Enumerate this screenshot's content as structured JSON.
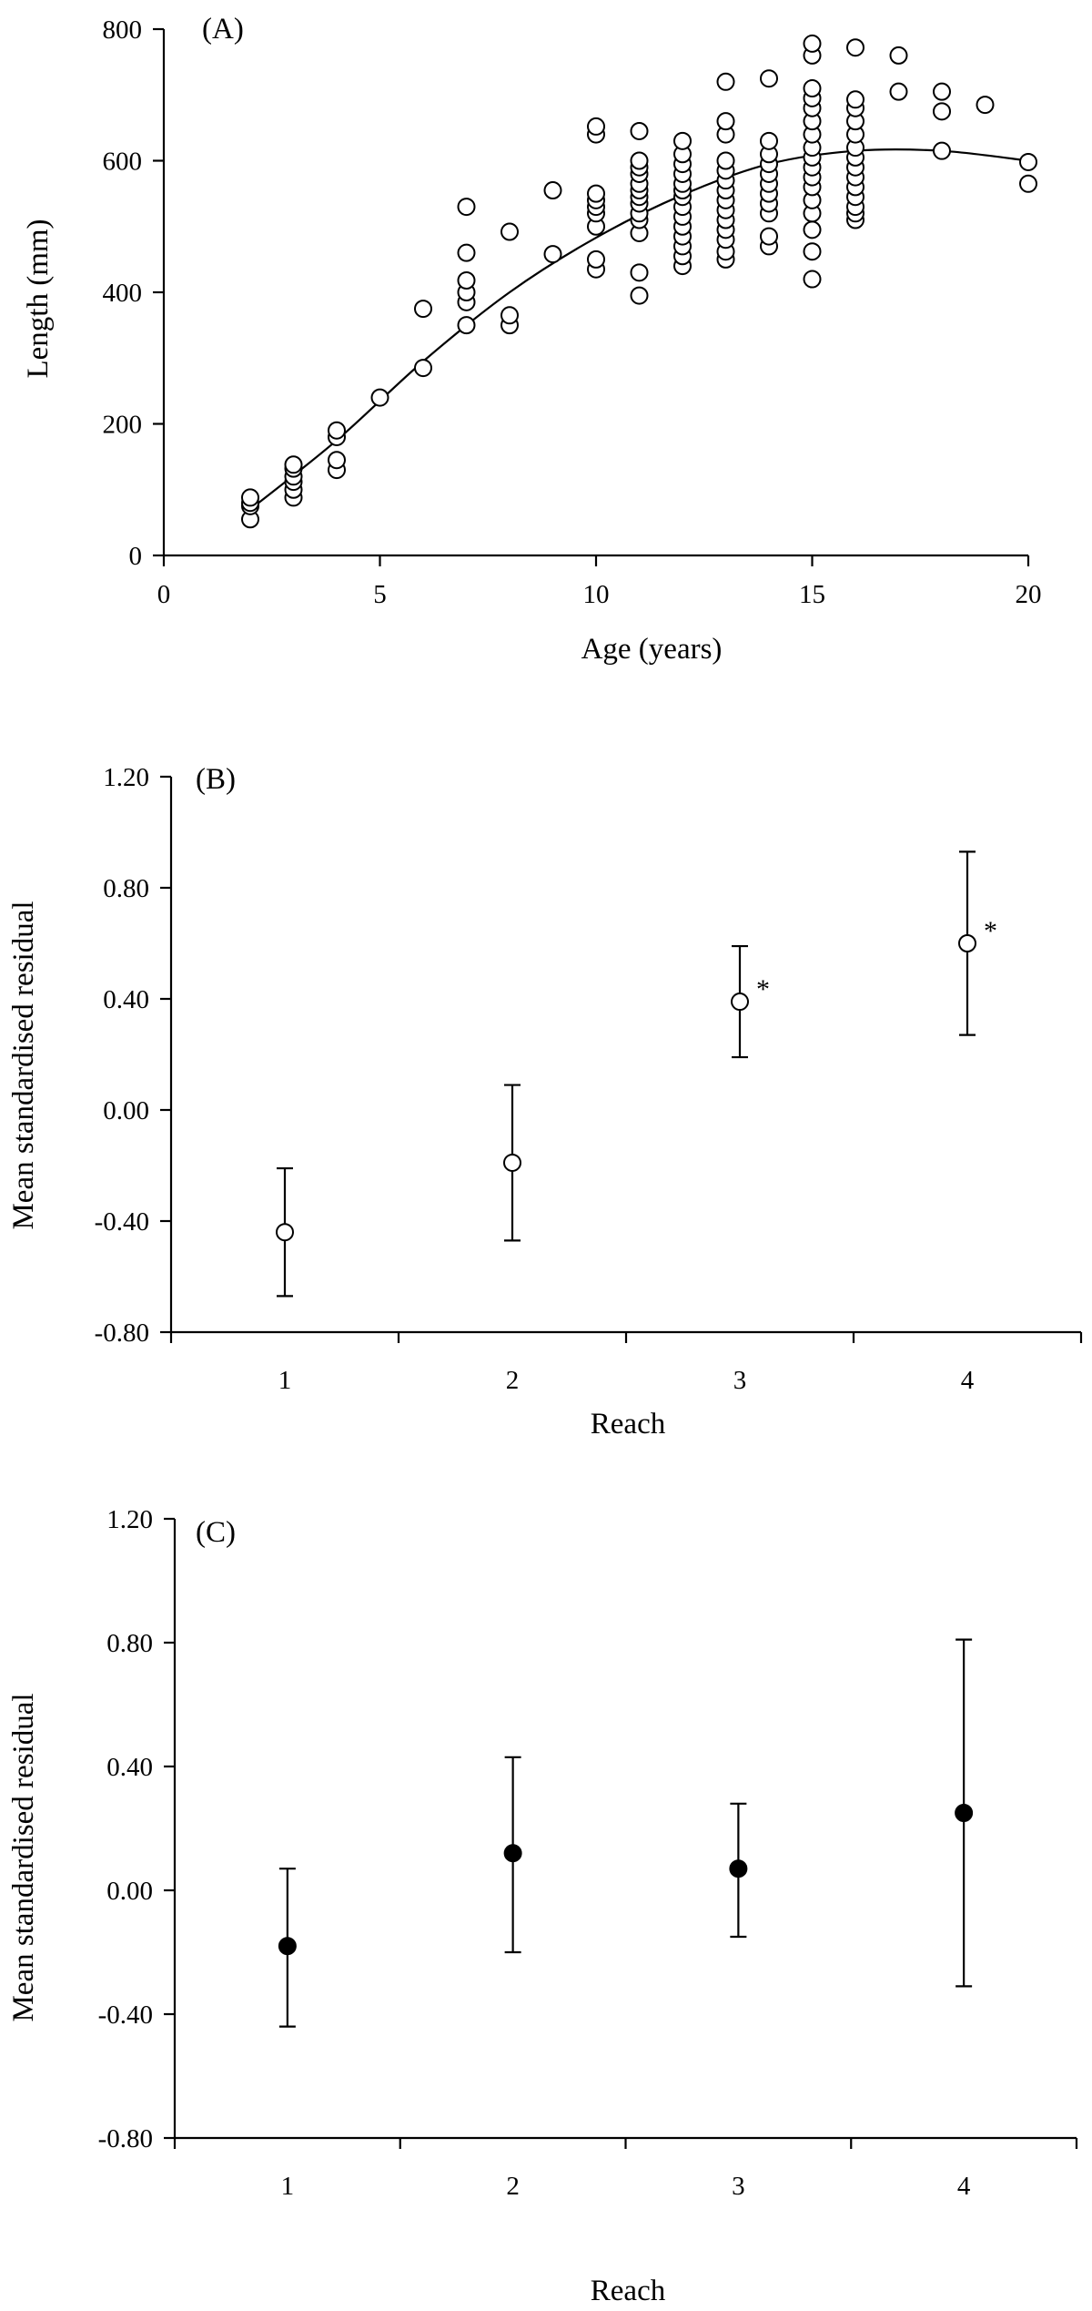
{
  "chart_data": [
    {
      "type": "scatter",
      "panel_label": "(A)",
      "xlabel": "Age (years)",
      "ylabel": "Length (mm)",
      "xlim": [
        0,
        20
      ],
      "ylim": [
        0,
        800
      ],
      "xticks": [
        0,
        5,
        10,
        15,
        20
      ],
      "yticks": [
        0,
        200,
        400,
        600,
        800
      ],
      "marker": "open-circle",
      "fit_curve": {
        "type": "polynomial",
        "points": [
          [
            2,
            70
          ],
          [
            4,
            175
          ],
          [
            6,
            295
          ],
          [
            8,
            400
          ],
          [
            10,
            483
          ],
          [
            12,
            548
          ],
          [
            14,
            595
          ],
          [
            16,
            615
          ],
          [
            18,
            615
          ],
          [
            20,
            600
          ]
        ]
      },
      "points": [
        [
          2,
          55
        ],
        [
          2,
          75
        ],
        [
          2,
          80
        ],
        [
          2,
          88
        ],
        [
          3,
          88
        ],
        [
          3,
          100
        ],
        [
          3,
          112
        ],
        [
          3,
          120
        ],
        [
          3,
          132
        ],
        [
          3,
          138
        ],
        [
          4,
          130
        ],
        [
          4,
          145
        ],
        [
          4,
          180
        ],
        [
          4,
          190
        ],
        [
          5,
          240
        ],
        [
          6,
          285
        ],
        [
          6,
          375
        ],
        [
          7,
          350
        ],
        [
          7,
          385
        ],
        [
          7,
          400
        ],
        [
          7,
          418
        ],
        [
          7,
          460
        ],
        [
          7,
          530
        ],
        [
          8,
          350
        ],
        [
          8,
          365
        ],
        [
          8,
          492
        ],
        [
          9,
          458
        ],
        [
          9,
          555
        ],
        [
          10,
          435
        ],
        [
          10,
          450
        ],
        [
          10,
          500
        ],
        [
          10,
          520
        ],
        [
          10,
          530
        ],
        [
          10,
          540
        ],
        [
          10,
          550
        ],
        [
          10,
          640
        ],
        [
          10,
          652
        ],
        [
          11,
          395
        ],
        [
          11,
          430
        ],
        [
          11,
          490
        ],
        [
          11,
          510
        ],
        [
          11,
          520
        ],
        [
          11,
          535
        ],
        [
          11,
          545
        ],
        [
          11,
          555
        ],
        [
          11,
          565
        ],
        [
          11,
          580
        ],
        [
          11,
          590
        ],
        [
          11,
          600
        ],
        [
          11,
          645
        ],
        [
          12,
          440
        ],
        [
          12,
          455
        ],
        [
          12,
          470
        ],
        [
          12,
          485
        ],
        [
          12,
          500
        ],
        [
          12,
          515
        ],
        [
          12,
          530
        ],
        [
          12,
          545
        ],
        [
          12,
          555
        ],
        [
          12,
          565
        ],
        [
          12,
          580
        ],
        [
          12,
          595
        ],
        [
          12,
          610
        ],
        [
          12,
          630
        ],
        [
          13,
          450
        ],
        [
          13,
          462
        ],
        [
          13,
          480
        ],
        [
          13,
          495
        ],
        [
          13,
          510
        ],
        [
          13,
          525
        ],
        [
          13,
          540
        ],
        [
          13,
          555
        ],
        [
          13,
          570
        ],
        [
          13,
          585
        ],
        [
          13,
          600
        ],
        [
          13,
          640
        ],
        [
          13,
          660
        ],
        [
          13,
          720
        ],
        [
          14,
          470
        ],
        [
          14,
          485
        ],
        [
          14,
          520
        ],
        [
          14,
          535
        ],
        [
          14,
          550
        ],
        [
          14,
          565
        ],
        [
          14,
          580
        ],
        [
          14,
          595
        ],
        [
          14,
          610
        ],
        [
          14,
          630
        ],
        [
          14,
          725
        ],
        [
          15,
          420
        ],
        [
          15,
          462
        ],
        [
          15,
          495
        ],
        [
          15,
          520
        ],
        [
          15,
          540
        ],
        [
          15,
          560
        ],
        [
          15,
          575
        ],
        [
          15,
          590
        ],
        [
          15,
          605
        ],
        [
          15,
          620
        ],
        [
          15,
          640
        ],
        [
          15,
          660
        ],
        [
          15,
          680
        ],
        [
          15,
          695
        ],
        [
          15,
          710
        ],
        [
          15,
          760
        ],
        [
          15,
          778
        ],
        [
          16,
          510
        ],
        [
          16,
          520
        ],
        [
          16,
          530
        ],
        [
          16,
          545
        ],
        [
          16,
          560
        ],
        [
          16,
          575
        ],
        [
          16,
          590
        ],
        [
          16,
          605
        ],
        [
          16,
          620
        ],
        [
          16,
          640
        ],
        [
          16,
          660
        ],
        [
          16,
          680
        ],
        [
          16,
          693
        ],
        [
          16,
          772
        ],
        [
          17,
          705
        ],
        [
          17,
          760
        ],
        [
          18,
          615
        ],
        [
          18,
          675
        ],
        [
          18,
          705
        ],
        [
          19,
          685
        ],
        [
          20,
          565
        ],
        [
          20,
          598
        ]
      ]
    },
    {
      "type": "scatter",
      "panel_label": "(B)",
      "xlabel": "Reach",
      "ylabel": "Mean standardised residual",
      "categories": [
        "1",
        "2",
        "3",
        "4"
      ],
      "ylim": [
        -0.8,
        1.2
      ],
      "yticks": [
        "-0.80",
        "-0.40",
        "0.00",
        "0.40",
        "0.80",
        "1.20"
      ],
      "marker": "open-circle",
      "values": [
        -0.44,
        -0.19,
        0.39,
        0.6
      ],
      "error_low": [
        -0.67,
        -0.47,
        0.19,
        0.27
      ],
      "error_high": [
        -0.21,
        0.09,
        0.59,
        0.93
      ],
      "annotations": [
        "",
        "",
        "*",
        "*"
      ]
    },
    {
      "type": "scatter",
      "panel_label": "(C)",
      "xlabel": "Reach",
      "ylabel": "Mean standardised residual",
      "categories": [
        "1",
        "2",
        "3",
        "4"
      ],
      "ylim": [
        -0.8,
        1.2
      ],
      "yticks": [
        "-0.80",
        "-0.40",
        "0.00",
        "0.40",
        "0.80",
        "1.20"
      ],
      "marker": "filled-circle",
      "values": [
        -0.18,
        0.12,
        0.07,
        0.25
      ],
      "error_low": [
        -0.44,
        -0.2,
        -0.15,
        -0.31
      ],
      "error_high": [
        0.07,
        0.43,
        0.28,
        0.81
      ],
      "annotations": [
        "",
        "",
        "",
        ""
      ]
    }
  ]
}
